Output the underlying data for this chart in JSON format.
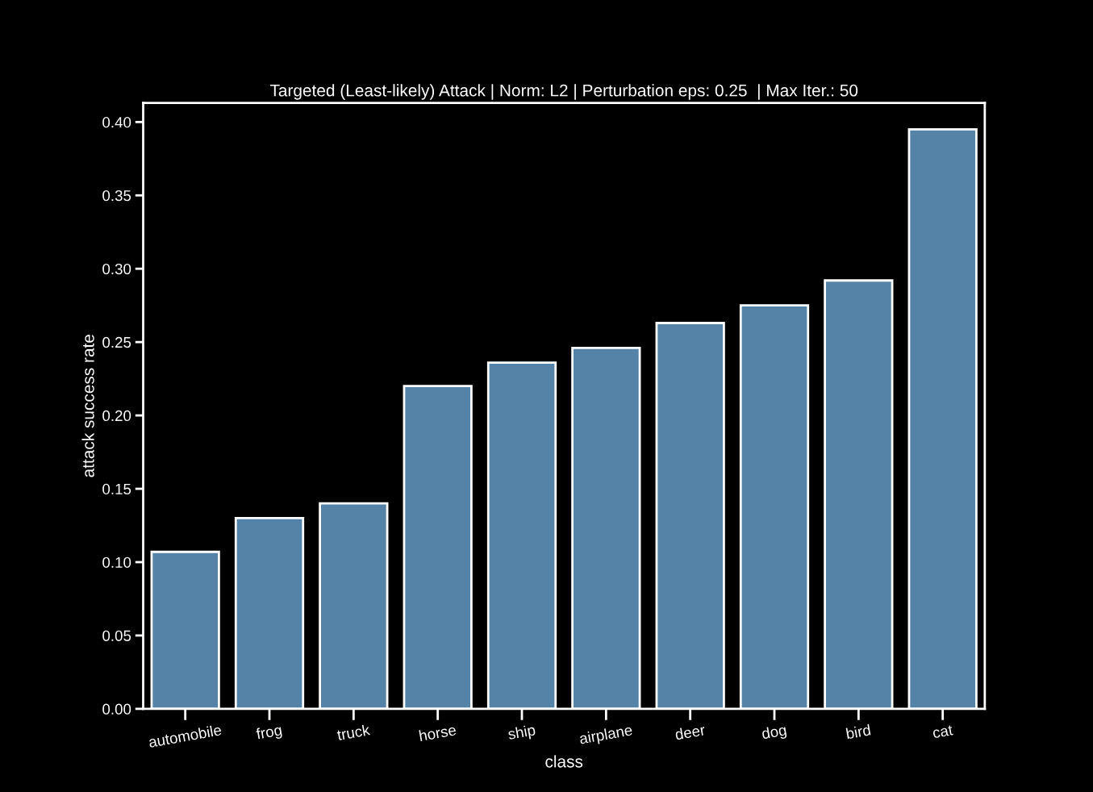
{
  "chart_data": {
    "type": "bar",
    "title": "Targeted (Least-likely) Attack | Norm: L2 | Perturbation eps: 0.25  | Max Iter.: 50",
    "xlabel": "class",
    "ylabel": "attack success rate",
    "categories": [
      "automobile",
      "frog",
      "truck",
      "horse",
      "ship",
      "airplane",
      "deer",
      "dog",
      "bird",
      "cat"
    ],
    "values": [
      0.107,
      0.13,
      0.14,
      0.22,
      0.236,
      0.246,
      0.263,
      0.275,
      0.292,
      0.395
    ],
    "color": "#5583a8",
    "ylim": [
      0,
      0.413
    ],
    "yticks": [
      {
        "value": 0,
        "label": "0.00"
      },
      {
        "value": 0.05,
        "label": "0.05"
      },
      {
        "value": 0.1,
        "label": "0.10"
      },
      {
        "value": 0.15,
        "label": "0.15"
      },
      {
        "value": 0.2,
        "label": "0.20"
      },
      {
        "value": 0.25,
        "label": "0.25"
      },
      {
        "value": 0.3,
        "label": "0.30"
      },
      {
        "value": 0.35,
        "label": "0.35"
      },
      {
        "value": 0.4,
        "label": "0.40"
      }
    ],
    "grid": false,
    "legend": false
  }
}
